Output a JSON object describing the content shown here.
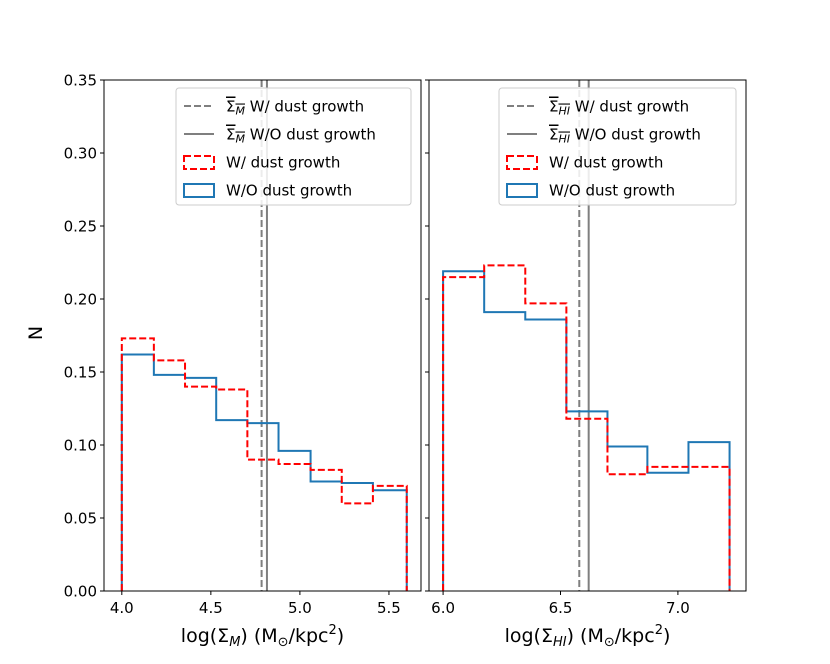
{
  "chart_data": {
    "type": "histogram",
    "ylabel": "N",
    "ylim": [
      0,
      0.35
    ],
    "yticks": [
      "0.00",
      "0.05",
      "0.10",
      "0.15",
      "0.20",
      "0.25",
      "0.30",
      "0.35"
    ],
    "shared_y": true,
    "panels": [
      {
        "xlabel_main": "log(Σ",
        "xlabel_sub": "M",
        "xlabel_tail": ") (M",
        "xlabel_sun": "⊙",
        "xlabel_unit": "/kpc",
        "xlabel_sup": "2",
        "xlabel_close": ")",
        "xlim": [
          3.9,
          5.68
        ],
        "xticks": [
          4.0,
          4.5,
          5.0,
          5.5
        ],
        "xtick_labels": [
          "4.0",
          "4.5",
          "5.0",
          "5.5"
        ],
        "vlines": [
          {
            "name": "mean_with",
            "x": 4.785,
            "style": "dashed",
            "color": "#7f7f7f"
          },
          {
            "name": "mean_without",
            "x": 4.815,
            "style": "solid",
            "color": "#7f7f7f"
          }
        ],
        "series": [
          {
            "name": "W/ dust growth",
            "color": "#ff0000",
            "style": "dashed",
            "bin_edges": [
              4.0,
              4.18,
              4.355,
              4.53,
              4.705,
              4.88,
              5.06,
              5.235,
              5.41,
              5.6
            ],
            "values": [
              0.173,
              0.158,
              0.14,
              0.138,
              0.09,
              0.087,
              0.083,
              0.06,
              0.072
            ]
          },
          {
            "name": "W/O dust growth",
            "color": "#1f77b4",
            "style": "solid",
            "bin_edges": [
              4.0,
              4.18,
              4.355,
              4.53,
              4.705,
              4.88,
              5.06,
              5.235,
              5.41,
              5.6
            ],
            "values": [
              0.162,
              0.148,
              0.146,
              0.117,
              0.115,
              0.096,
              0.075,
              0.074,
              0.069
            ]
          }
        ],
        "legend": {
          "position": "top-right",
          "entries": [
            {
              "kind": "dashed-line",
              "color": "#7f7f7f",
              "label_prefix": "Σ",
              "label_sub": "M",
              "label_text": "W/ dust growth"
            },
            {
              "kind": "solid-line",
              "color": "#7f7f7f",
              "label_prefix": "Σ",
              "label_sub": "M",
              "label_text": "W/O dust growth"
            },
            {
              "kind": "dashed-box",
              "color": "#ff0000",
              "label_text": "W/ dust growth"
            },
            {
              "kind": "solid-box",
              "color": "#1f77b4",
              "label_text": "W/O dust growth"
            }
          ]
        }
      },
      {
        "xlabel_main": "log(Σ",
        "xlabel_sub": "HI",
        "xlabel_tail": ") (M",
        "xlabel_sun": "⊙",
        "xlabel_unit": "/kpc",
        "xlabel_sup": "2",
        "xlabel_close": ")",
        "xlim": [
          5.94,
          7.29
        ],
        "xticks": [
          6.0,
          6.5,
          7.0
        ],
        "xtick_labels": [
          "6.0",
          "6.5",
          "7.0"
        ],
        "vlines": [
          {
            "name": "mean_with",
            "x": 6.58,
            "style": "dashed",
            "color": "#7f7f7f"
          },
          {
            "name": "mean_without",
            "x": 6.62,
            "style": "solid",
            "color": "#7f7f7f"
          }
        ],
        "series": [
          {
            "name": "W/ dust growth",
            "color": "#ff0000",
            "style": "dashed",
            "bin_edges": [
              6.0,
              6.175,
              6.35,
              6.525,
              6.7,
              6.87,
              7.045,
              7.22
            ],
            "values": [
              0.215,
              0.223,
              0.197,
              0.118,
              0.08,
              0.085,
              0.085
            ]
          },
          {
            "name": "W/O dust growth",
            "color": "#1f77b4",
            "style": "solid",
            "bin_edges": [
              6.0,
              6.175,
              6.35,
              6.525,
              6.7,
              6.87,
              7.045,
              7.22
            ],
            "values": [
              0.219,
              0.191,
              0.186,
              0.123,
              0.099,
              0.081,
              0.102
            ]
          }
        ],
        "legend": {
          "position": "top-right",
          "entries": [
            {
              "kind": "dashed-line",
              "color": "#7f7f7f",
              "label_prefix": "Σ",
              "label_sub": "HI",
              "label_text": "W/ dust growth"
            },
            {
              "kind": "solid-line",
              "color": "#7f7f7f",
              "label_prefix": "Σ",
              "label_sub": "HI",
              "label_text": "W/O dust growth"
            },
            {
              "kind": "dashed-box",
              "color": "#ff0000",
              "label_text": "W/ dust growth"
            },
            {
              "kind": "solid-box",
              "color": "#1f77b4",
              "label_text": "W/O dust growth"
            }
          ]
        }
      }
    ]
  }
}
